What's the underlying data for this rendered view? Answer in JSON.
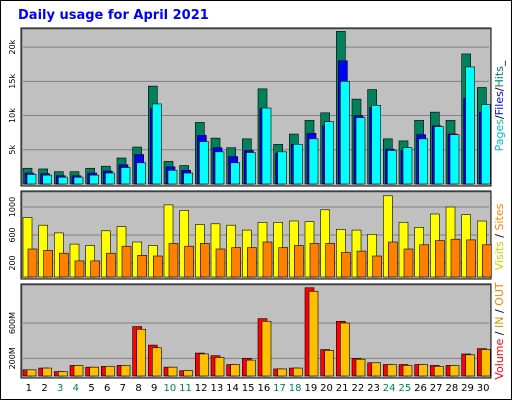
{
  "title": "Daily usage for April 2021",
  "colors": {
    "title": "#0000FF",
    "panel_bg": "#C0C0C0",
    "grid": "#808080",
    "hits": "#00805C",
    "files": "#0000FF",
    "pages": "#00FFFF",
    "visits": "#FFFF00",
    "sites": "#FF8000",
    "volume": "#FF0000",
    "in": "#FF8000",
    "out": "#FFC000",
    "weekday": "#000000",
    "weekend": "#00805C"
  },
  "legends": {
    "panel1": [
      {
        "text": "Pages",
        "color": "#00C0C0"
      },
      {
        "text": "/",
        "color": "#000000"
      },
      {
        "text": "Files",
        "color": "#0000FF"
      },
      {
        "text": "/",
        "color": "#000000"
      },
      {
        "text": "Hits",
        "color": "#00805C"
      },
      {
        "text": "_",
        "color": "#000000"
      }
    ],
    "panel2": [
      {
        "text": "Visits",
        "color": "#D0D000"
      },
      {
        "text": " / ",
        "color": "#000000"
      },
      {
        "text": "Sites",
        "color": "#FF8000"
      }
    ],
    "panel3": [
      {
        "text": "Volume",
        "color": "#FF0000"
      },
      {
        "text": " / ",
        "color": "#000000"
      },
      {
        "text": "IN",
        "color": "#C0A000"
      },
      {
        "text": " / ",
        "color": "#000000"
      },
      {
        "text": "OUT",
        "color": "#FF8000"
      }
    ]
  },
  "chart_data": {
    "type": "bar",
    "title": "Daily usage for April 2021",
    "days": [
      "1",
      "2",
      "3",
      "4",
      "5",
      "6",
      "7",
      "8",
      "9",
      "10",
      "11",
      "12",
      "13",
      "14",
      "15",
      "16",
      "17",
      "18",
      "19",
      "20",
      "21",
      "22",
      "23",
      "24",
      "25",
      "26",
      "27",
      "28",
      "29",
      "30"
    ],
    "weekend_days": [
      "3",
      "4",
      "10",
      "11",
      "17",
      "18",
      "24",
      "25"
    ],
    "panel_hits": {
      "ylim": [
        0,
        22500
      ],
      "ticks": [
        {
          "v": 5000,
          "label": "5k"
        },
        {
          "v": 10000,
          "label": "10k"
        },
        {
          "v": 15000,
          "label": "15k"
        },
        {
          "v": 20000,
          "label": "20k"
        }
      ],
      "series": [
        {
          "name": "Hits",
          "values": [
            2300,
            2200,
            1800,
            1800,
            2300,
            2600,
            3800,
            5400,
            14300,
            3300,
            2700,
            9000,
            6700,
            5300,
            6600,
            13900,
            5800,
            7300,
            9300,
            10400,
            22300,
            12400,
            13800,
            6600,
            6300,
            9300,
            10500,
            9300,
            19000,
            14100
          ]
        },
        {
          "name": "Files",
          "values": [
            1600,
            1500,
            1200,
            1200,
            1600,
            1900,
            2800,
            4300,
            11000,
            2500,
            2000,
            7100,
            5300,
            4000,
            4900,
            11000,
            4500,
            5800,
            7400,
            8500,
            18000,
            10000,
            11200,
            5100,
            4900,
            7200,
            8500,
            7300,
            12500,
            10500
          ]
        },
        {
          "name": "Pages",
          "values": [
            1400,
            1300,
            1000,
            1000,
            1300,
            1600,
            2400,
            3100,
            11700,
            2000,
            1600,
            6200,
            4700,
            3100,
            4600,
            11100,
            4700,
            5800,
            6600,
            9100,
            15000,
            9700,
            11500,
            4900,
            5300,
            6600,
            8400,
            7200,
            17100,
            11600
          ]
        }
      ]
    },
    "panel_visits": {
      "ylim": [
        0,
        1200
      ],
      "ticks": [
        {
          "v": 200,
          "label": "200"
        },
        {
          "v": 600,
          "label": "600"
        },
        {
          "v": 1000,
          "label": "1000"
        }
      ],
      "series": [
        {
          "name": "Visits",
          "values": [
            850,
            740,
            630,
            470,
            450,
            660,
            720,
            500,
            450,
            1030,
            950,
            750,
            760,
            740,
            670,
            780,
            780,
            800,
            790,
            960,
            680,
            670,
            610,
            1160,
            780,
            710,
            900,
            1000,
            890,
            800
          ]
        },
        {
          "name": "Sites",
          "values": [
            400,
            380,
            340,
            230,
            230,
            340,
            440,
            310,
            300,
            480,
            440,
            480,
            400,
            420,
            420,
            500,
            420,
            450,
            480,
            480,
            350,
            370,
            300,
            500,
            400,
            460,
            520,
            540,
            530,
            460
          ]
        }
      ]
    },
    "panel_volume": {
      "ylim": [
        0,
        1020
      ],
      "ticks": [
        {
          "v": 200,
          "label": "200M"
        },
        {
          "v": 600,
          "label": "600M"
        }
      ],
      "series": [
        {
          "name": "Volume",
          "values": [
            70,
            90,
            50,
            120,
            100,
            110,
            120,
            560,
            350,
            100,
            60,
            260,
            230,
            130,
            200,
            650,
            80,
            90,
            1000,
            300,
            620,
            200,
            150,
            130,
            130,
            130,
            120,
            120,
            250,
            310
          ]
        },
        {
          "name": "OUT",
          "values": [
            70,
            90,
            50,
            120,
            100,
            110,
            120,
            530,
            320,
            100,
            60,
            250,
            210,
            130,
            180,
            620,
            80,
            90,
            960,
            290,
            600,
            190,
            150,
            130,
            120,
            130,
            110,
            120,
            240,
            300
          ]
        }
      ]
    }
  }
}
